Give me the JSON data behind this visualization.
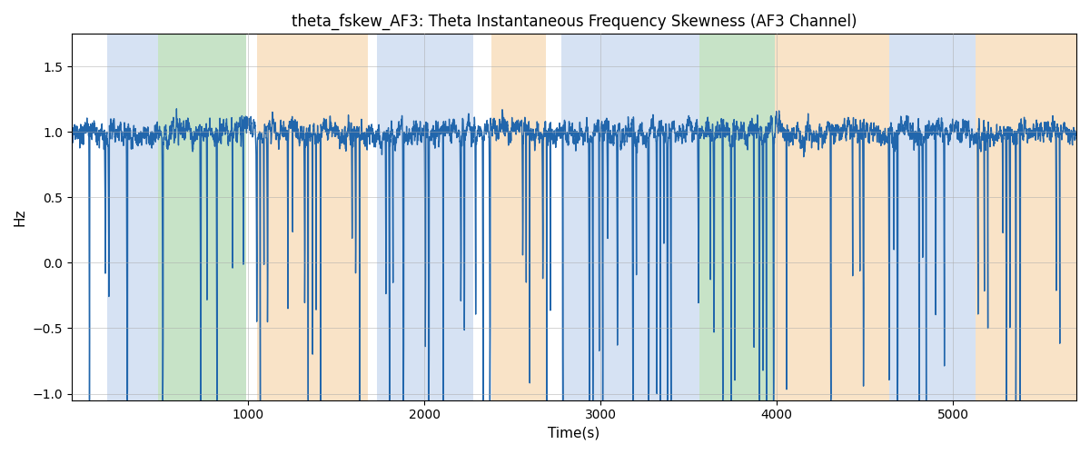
{
  "title": "theta_fskew_AF3: Theta Instantaneous Frequency Skewness (AF3 Channel)",
  "xlabel": "Time(s)",
  "ylabel": "Hz",
  "xlim": [
    0,
    5700
  ],
  "ylim": [
    -1.05,
    1.75
  ],
  "yticks": [
    -1.0,
    -0.5,
    0.0,
    0.5,
    1.0,
    1.5
  ],
  "xticks": [
    1000,
    2000,
    3000,
    4000,
    5000
  ],
  "line_color": "#2166ac",
  "line_width": 1.0,
  "bg_regions": [
    {
      "xmin": 200,
      "xmax": 490,
      "color": "#aec6e8",
      "alpha": 0.5
    },
    {
      "xmin": 490,
      "xmax": 990,
      "color": "#90c990",
      "alpha": 0.5
    },
    {
      "xmin": 1050,
      "xmax": 1680,
      "color": "#f5c990",
      "alpha": 0.5
    },
    {
      "xmin": 1730,
      "xmax": 2280,
      "color": "#aec6e8",
      "alpha": 0.5
    },
    {
      "xmin": 2380,
      "xmax": 2690,
      "color": "#f5c990",
      "alpha": 0.5
    },
    {
      "xmin": 2780,
      "xmax": 3430,
      "color": "#aec6e8",
      "alpha": 0.5
    },
    {
      "xmin": 3430,
      "xmax": 3560,
      "color": "#aec6e8",
      "alpha": 0.5
    },
    {
      "xmin": 3560,
      "xmax": 3990,
      "color": "#90c990",
      "alpha": 0.5
    },
    {
      "xmin": 3990,
      "xmax": 4640,
      "color": "#f5c990",
      "alpha": 0.5
    },
    {
      "xmin": 4640,
      "xmax": 5130,
      "color": "#aec6e8",
      "alpha": 0.5
    },
    {
      "xmin": 5130,
      "xmax": 5700,
      "color": "#f5c990",
      "alpha": 0.5
    }
  ],
  "figsize": [
    12.0,
    5.0
  ],
  "dpi": 100
}
